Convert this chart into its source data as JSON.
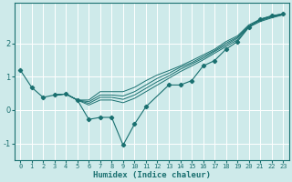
{
  "title": "",
  "xlabel": "Humidex (Indice chaleur)",
  "ylabel": "",
  "bg_color": "#ceeaea",
  "line_color": "#1a7070",
  "grid_color": "#ffffff",
  "xlim": [
    -0.5,
    23.5
  ],
  "ylim": [
    -1.5,
    3.2
  ],
  "yticks": [
    -1,
    0,
    1,
    2
  ],
  "xticks": [
    0,
    1,
    2,
    3,
    4,
    5,
    6,
    7,
    8,
    9,
    10,
    11,
    12,
    13,
    14,
    15,
    16,
    17,
    18,
    19,
    20,
    21,
    22,
    23
  ],
  "main_line": {
    "x": [
      0,
      1,
      2,
      3,
      4,
      5,
      6,
      7,
      8,
      9,
      10,
      11,
      13,
      14,
      15,
      16,
      17,
      18,
      19,
      20,
      21,
      22,
      23
    ],
    "y": [
      1.2,
      0.68,
      0.38,
      0.45,
      0.48,
      0.3,
      -0.28,
      -0.22,
      -0.22,
      -1.05,
      -0.42,
      0.1,
      0.75,
      0.75,
      0.88,
      1.32,
      1.48,
      1.82,
      2.05,
      2.48,
      2.72,
      2.82,
      2.88
    ]
  },
  "smooth_lines": [
    {
      "x": [
        3,
        4,
        5,
        6,
        7,
        8,
        9,
        10,
        11,
        12,
        13,
        14,
        15,
        16,
        17,
        18,
        19,
        20,
        21,
        22,
        23
      ],
      "y": [
        0.45,
        0.48,
        0.3,
        0.3,
        0.55,
        0.55,
        0.55,
        0.68,
        0.88,
        1.05,
        1.18,
        1.32,
        1.48,
        1.65,
        1.82,
        2.05,
        2.22,
        2.55,
        2.72,
        2.82,
        2.88
      ]
    },
    {
      "x": [
        3,
        4,
        5,
        6,
        7,
        8,
        9,
        10,
        11,
        12,
        13,
        14,
        15,
        16,
        17,
        18,
        19,
        20,
        21,
        22,
        23
      ],
      "y": [
        0.45,
        0.48,
        0.3,
        0.25,
        0.45,
        0.45,
        0.42,
        0.55,
        0.75,
        0.95,
        1.1,
        1.28,
        1.42,
        1.6,
        1.78,
        2.0,
        2.18,
        2.52,
        2.7,
        2.8,
        2.87
      ]
    },
    {
      "x": [
        3,
        4,
        5,
        6,
        7,
        8,
        9,
        10,
        11,
        12,
        13,
        14,
        15,
        16,
        17,
        18,
        19,
        20,
        21,
        22,
        23
      ],
      "y": [
        0.45,
        0.48,
        0.3,
        0.2,
        0.38,
        0.38,
        0.32,
        0.45,
        0.65,
        0.85,
        1.02,
        1.22,
        1.38,
        1.55,
        1.75,
        1.95,
        2.15,
        2.5,
        2.68,
        2.78,
        2.86
      ]
    },
    {
      "x": [
        3,
        4,
        5,
        6,
        7,
        8,
        9,
        10,
        11,
        12,
        13,
        14,
        15,
        16,
        17,
        18,
        19,
        20,
        21,
        22,
        23
      ],
      "y": [
        0.45,
        0.48,
        0.3,
        0.15,
        0.3,
        0.3,
        0.22,
        0.35,
        0.55,
        0.75,
        0.95,
        1.15,
        1.32,
        1.5,
        1.7,
        1.9,
        2.1,
        2.48,
        2.65,
        2.76,
        2.85
      ]
    }
  ]
}
